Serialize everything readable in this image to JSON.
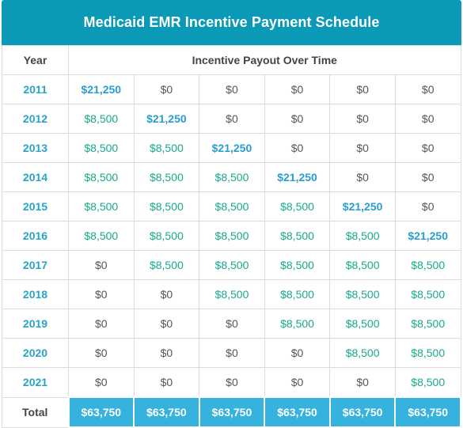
{
  "title": "Medicaid EMR Incentive Payment Schedule",
  "header": {
    "year_label": "Year",
    "payout_label": "Incentive Payout Over Time"
  },
  "rows": [
    {
      "year": "2011",
      "cells": [
        "$21,250",
        "$0",
        "$0",
        "$0",
        "$0",
        "$0"
      ]
    },
    {
      "year": "2012",
      "cells": [
        "$8,500",
        "$21,250",
        "$0",
        "$0",
        "$0",
        "$0"
      ]
    },
    {
      "year": "2013",
      "cells": [
        "$8,500",
        "$8,500",
        "$21,250",
        "$0",
        "$0",
        "$0"
      ]
    },
    {
      "year": "2014",
      "cells": [
        "$8,500",
        "$8,500",
        "$8,500",
        "$21,250",
        "$0",
        "$0"
      ]
    },
    {
      "year": "2015",
      "cells": [
        "$8,500",
        "$8,500",
        "$8,500",
        "$8,500",
        "$21,250",
        "$0"
      ]
    },
    {
      "year": "2016",
      "cells": [
        "$8,500",
        "$8,500",
        "$8,500",
        "$8,500",
        "$8,500",
        "$21,250"
      ]
    },
    {
      "year": "2017",
      "cells": [
        "$0",
        "$8,500",
        "$8,500",
        "$8,500",
        "$8,500",
        "$8,500"
      ]
    },
    {
      "year": "2018",
      "cells": [
        "$0",
        "$0",
        "$8,500",
        "$8,500",
        "$8,500",
        "$8,500"
      ]
    },
    {
      "year": "2019",
      "cells": [
        "$0",
        "$0",
        "$0",
        "$8,500",
        "$8,500",
        "$8,500"
      ]
    },
    {
      "year": "2020",
      "cells": [
        "$0",
        "$0",
        "$0",
        "$0",
        "$8,500",
        "$8,500"
      ]
    },
    {
      "year": "2021",
      "cells": [
        "$0",
        "$0",
        "$0",
        "$0",
        "$0",
        "$8,500"
      ]
    }
  ],
  "total": {
    "label": "Total",
    "cells": [
      "$63,750",
      "$63,750",
      "$63,750",
      "$63,750",
      "$63,750",
      "$63,750"
    ]
  },
  "colors": {
    "title_bg": "#0a9ab7",
    "year_text": "#2aa3c6",
    "regular_payment": "#17a98a",
    "first_year_payment": "#2a9dd0",
    "total_bg": "#35b2de"
  }
}
